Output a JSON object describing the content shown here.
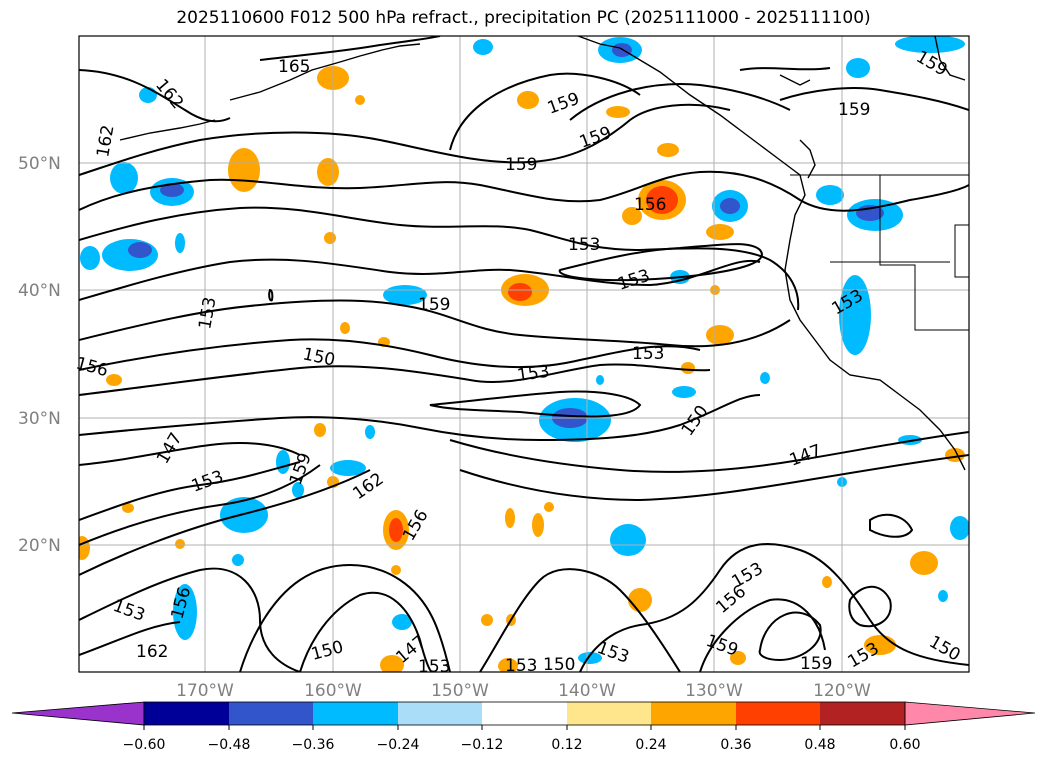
{
  "title": "2025110600 F012 500 hPa refract., precipitation PC (2025111000 - 2025111100)",
  "lat_labels": [
    "50°N",
    "40°N",
    "30°N",
    "20°N"
  ],
  "lon_labels": [
    "170°W",
    "160°W",
    "150°W",
    "140°W",
    "130°W",
    "120°W"
  ],
  "contour_labels": [
    "165",
    "162",
    "162",
    "159",
    "159",
    "159",
    "159",
    "159",
    "156",
    "153",
    "153",
    "153",
    "159",
    "153",
    "150",
    "153",
    "156",
    "150",
    "147",
    "147",
    "153",
    "159",
    "162",
    "156",
    "153",
    "153",
    "156",
    "162",
    "150",
    "147",
    "153",
    "153",
    "150",
    "153",
    "156",
    "159",
    "159",
    "153",
    "150",
    "153"
  ],
  "colorbar": {
    "ticks": [
      "−0.60",
      "−0.48",
      "−0.36",
      "−0.24",
      "−0.12",
      "0.12",
      "0.24",
      "0.36",
      "0.48",
      "0.60"
    ],
    "colors": [
      "#9933cc",
      "#000099",
      "#3355cc",
      "#00bbff",
      "#aaddf7",
      "#ffffff",
      "#ffe68c",
      "#ffa500",
      "#ff4000",
      "#b22222",
      "#ff88aa"
    ]
  }
}
